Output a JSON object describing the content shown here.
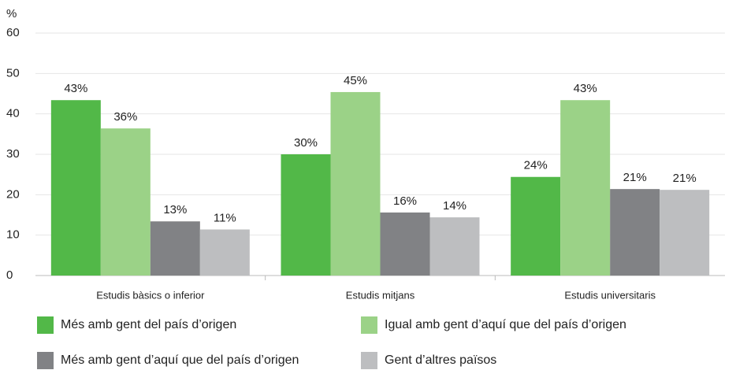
{
  "chart_data": {
    "type": "bar",
    "y_label": "%",
    "categories": [
      "Estudis bàsics o inferior",
      "Estudis mitjans",
      "Estudis universitaris"
    ],
    "series": [
      {
        "name": "Més amb gent del país d’origen",
        "color": "#52b848",
        "values": [
          43.4,
          30,
          24.4
        ],
        "value_labels": [
          "43%",
          "30%",
          "24%"
        ]
      },
      {
        "name": "Igual amb gent d’aquí que del país d’origen",
        "color": "#9bd287",
        "values": [
          36.4,
          45.4,
          43.4
        ],
        "value_labels": [
          "36%",
          "45%",
          "43%"
        ]
      },
      {
        "name": "Més amb gent d’aquí que del país d’origen",
        "color": "#818285",
        "values": [
          13.4,
          15.6,
          21.4
        ],
        "value_labels": [
          "13%",
          "16%",
          "21%"
        ]
      },
      {
        "name": "Gent d’altres països",
        "color": "#bdbec0",
        "values": [
          11.4,
          14.4,
          21.2
        ],
        "value_labels": [
          "11%",
          "14%",
          "21%"
        ]
      }
    ],
    "ylim": [
      0,
      60
    ],
    "yticks": [
      0,
      10,
      20,
      30,
      40,
      50,
      60
    ],
    "grid": true,
    "legend": "bottom"
  }
}
